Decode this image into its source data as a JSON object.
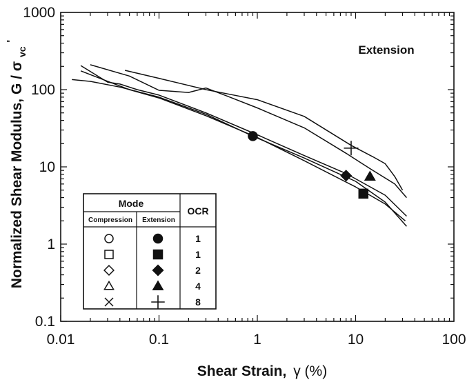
{
  "chart_data": {
    "type": "line",
    "annotation": "Extension",
    "xlabel_text": "Shear Strain,",
    "xlabel_symbol": "γ (%)",
    "ylabel_text": "Normalized Shear Modulus, G / σ",
    "ylabel_sub": "vc",
    "ylabel_sup": "'",
    "xscale": "log",
    "yscale": "log",
    "xlim": [
      0.01,
      100
    ],
    "ylim": [
      0.1,
      1000
    ],
    "xticks": [
      "0.01",
      "0.1",
      "1",
      "10",
      "100"
    ],
    "yticks": [
      "0.1",
      "1",
      "10",
      "100",
      "1000"
    ],
    "grid": false,
    "series": [
      {
        "marker": "filled-circle",
        "marker_point": [
          0.9,
          25
        ],
        "x": [
          0.013,
          0.02,
          0.04,
          0.1,
          0.3,
          0.9,
          3,
          10,
          20,
          33
        ],
        "y": [
          135,
          128,
          108,
          80,
          48,
          25,
          13,
          6.5,
          3.5,
          1.7
        ]
      },
      {
        "marker": "filled-square",
        "marker_point": [
          12,
          4.5
        ],
        "x": [
          0.016,
          0.025,
          0.05,
          0.1,
          0.3,
          1,
          3,
          10,
          20,
          32
        ],
        "y": [
          175,
          140,
          100,
          78,
          46,
          24,
          12,
          5.5,
          3.3,
          2.0
        ]
      },
      {
        "marker": "filled-diamond",
        "marker_point": [
          8,
          7.7
        ],
        "x": [
          0.016,
          0.03,
          0.04,
          0.06,
          0.1,
          0.3,
          1,
          3,
          8,
          20,
          33
        ],
        "y": [
          205,
          125,
          118,
          100,
          85,
          50,
          26,
          14,
          8.2,
          4.3,
          2.3
        ]
      },
      {
        "marker": "filled-triangle",
        "marker_point": [
          14,
          7.5
        ],
        "x": [
          0.02,
          0.05,
          0.1,
          0.2,
          0.3,
          0.5,
          1,
          3,
          8,
          14,
          25,
          33
        ],
        "y": [
          210,
          150,
          98,
          92,
          105,
          82,
          58,
          32,
          15,
          9.5,
          6,
          4.0
        ]
      },
      {
        "marker": "plus",
        "marker_point": [
          9,
          17.5
        ],
        "x": [
          0.045,
          0.1,
          0.3,
          0.5,
          1,
          3,
          9,
          15,
          20,
          25,
          30
        ],
        "y": [
          178,
          140,
          100,
          88,
          74,
          45,
          19,
          13.5,
          11,
          7.5,
          5.0
        ]
      }
    ],
    "legend": {
      "placement": "lower-left",
      "mode_header": "Mode",
      "col_compression": "Compression",
      "col_extension": "Extension",
      "col_ocr": "OCR",
      "rows": [
        {
          "compression": "open-circle",
          "extension": "filled-circle",
          "ocr": "1"
        },
        {
          "compression": "open-square",
          "extension": "filled-square",
          "ocr": "1"
        },
        {
          "compression": "open-diamond",
          "extension": "filled-diamond",
          "ocr": "2"
        },
        {
          "compression": "open-triangle",
          "extension": "filled-triangle",
          "ocr": "4"
        },
        {
          "compression": "x-cross",
          "extension": "plus",
          "ocr": "8"
        }
      ]
    }
  }
}
